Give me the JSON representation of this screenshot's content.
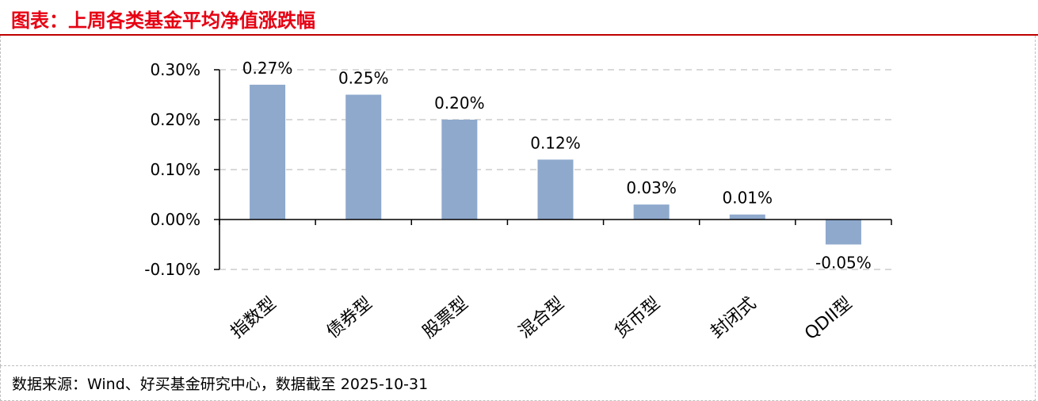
{
  "header": {
    "title": "图表：上周各类基金平均净值涨跌幅"
  },
  "footer": {
    "source": "数据来源：Wind、好买基金研究中心，数据截至  2025-10-31"
  },
  "chart_data": {
    "type": "bar",
    "categories": [
      "指数型",
      "债券型",
      "股票型",
      "混合型",
      "货币型",
      "封闭式",
      "QDII型"
    ],
    "values": [
      0.27,
      0.25,
      0.2,
      0.12,
      0.03,
      0.01,
      -0.05
    ],
    "data_labels": [
      "0.27%",
      "0.25%",
      "0.20%",
      "0.12%",
      "0.03%",
      "0.01%",
      "-0.05%"
    ],
    "yticks": [
      0.3,
      0.2,
      0.1,
      0.0,
      -0.1
    ],
    "ytick_labels": [
      "0.30%",
      "0.20%",
      "0.10%",
      "0.00%",
      "-0.10%"
    ],
    "ylim": [
      -0.1,
      0.3
    ],
    "grid": true,
    "bar_color": "#8ea9cc",
    "gridline_color": "#d9d9d9"
  }
}
